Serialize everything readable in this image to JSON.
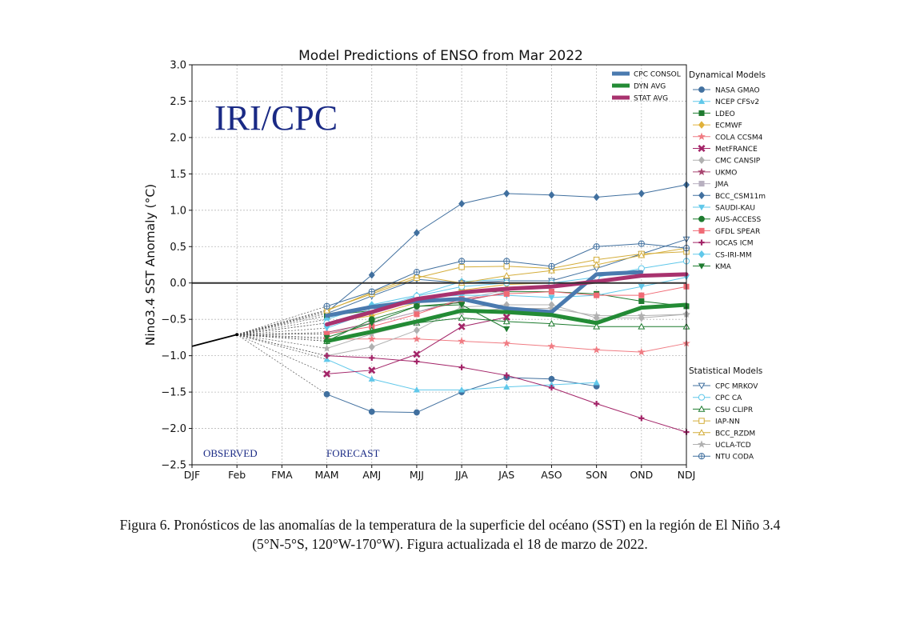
{
  "figure_caption": {
    "line1": "Figura 6. Pronósticos de las anomalías de la temperatura de la superficie del océano (SST) en la región de El Niño 3.4",
    "line2": "(5°N-5°S, 120°W-170°W). Figura actualizada el 18 de marzo de 2022."
  },
  "chart_data": {
    "type": "line",
    "title": "Model Predictions of ENSO from Mar 2022",
    "ylabel": "Nino3.4 SST Anomaly (°C)",
    "xlabel": "",
    "ylim": [
      -2.5,
      3.0
    ],
    "yticks": [
      3.0,
      2.5,
      2.0,
      1.5,
      1.0,
      0.5,
      0.0,
      -0.5,
      -1.0,
      -1.5,
      -2.0,
      -2.5
    ],
    "categories": [
      "DJF",
      "Feb",
      "FMA",
      "MAM",
      "AMJ",
      "MJJ",
      "JJA",
      "JAS",
      "ASO",
      "SON",
      "OND",
      "NDJ"
    ],
    "grid": true,
    "watermark": "IRI/CPC",
    "region_labels": [
      "OBSERVED",
      "FORECAST"
    ],
    "legend_group_titles": [
      "Dynamical Models",
      "Statistical Models"
    ],
    "observed": [
      -0.87,
      -0.71
    ],
    "averages": [
      {
        "name": "CPC CONSOL",
        "color": "#4a7aaf",
        "values": [
          -0.45,
          -0.33,
          -0.25,
          -0.22,
          -0.35,
          -0.4,
          0.12,
          0.15
        ]
      },
      {
        "name": "DYN AVG",
        "color": "#238b35",
        "values": [
          -0.8,
          -0.67,
          -0.53,
          -0.38,
          -0.4,
          -0.44,
          -0.55,
          -0.34,
          -0.3
        ]
      },
      {
        "name": "STAT AVG",
        "color": "#a8326e",
        "values": [
          -0.57,
          -0.4,
          -0.22,
          -0.13,
          -0.08,
          -0.05,
          0.02,
          0.1,
          0.12
        ]
      }
    ],
    "dynamical": [
      {
        "name": "NASA GMAO",
        "color": "#41709f",
        "marker": "circle",
        "values": [
          -1.53,
          -1.77,
          -1.78,
          -1.5,
          -1.3,
          -1.32,
          -1.42
        ]
      },
      {
        "name": "NCEP CFSv2",
        "color": "#60c8ea",
        "marker": "triangle-up",
        "values": [
          -1.05,
          -1.32,
          -1.47,
          -1.47,
          -1.43,
          -1.4,
          -1.37
        ]
      },
      {
        "name": "LDEO",
        "color": "#1e7b2f",
        "marker": "square",
        "values": [
          -0.45,
          -0.38,
          -0.25,
          -0.12,
          -0.12,
          -0.12,
          -0.15,
          -0.25,
          -0.32
        ]
      },
      {
        "name": "ECMWF",
        "color": "#e0b13a",
        "marker": "diamond",
        "values": [
          -0.55,
          -0.45,
          -0.27,
          -0.1,
          -0.02,
          0.0
        ]
      },
      {
        "name": "COLA CCSM4",
        "color": "#f07c83",
        "marker": "star",
        "values": [
          -0.77,
          -0.77,
          -0.77,
          -0.8,
          -0.83,
          -0.87,
          -0.92,
          -0.95,
          -0.83
        ]
      },
      {
        "name": "MetFRANCE",
        "color": "#a32468",
        "marker": "x-filled",
        "values": [
          -1.25,
          -1.2,
          -0.98,
          -0.6,
          -0.47
        ]
      },
      {
        "name": "CMC CANSIP",
        "color": "#b0b0b0",
        "marker": "diamond",
        "values": [
          -1.0,
          -0.88,
          -0.65,
          -0.33,
          -0.3,
          -0.3,
          -0.48,
          -0.48,
          -0.43
        ]
      },
      {
        "name": "UKMO",
        "color": "#a84570",
        "marker": "star",
        "values": [
          -0.68,
          -0.55,
          -0.4,
          -0.25,
          -0.13
        ]
      },
      {
        "name": "JMA",
        "color": "#b8b0c0",
        "marker": "square",
        "values": [
          -0.7,
          -0.55,
          -0.4,
          -0.22,
          -0.1,
          -0.02
        ]
      },
      {
        "name": "BCC_CSM11m",
        "color": "#41709f",
        "marker": "diamond",
        "values": [
          -0.4,
          0.11,
          0.69,
          1.09,
          1.23,
          1.21,
          1.18,
          1.23,
          1.35
        ]
      },
      {
        "name": "SAUDI-KAU",
        "color": "#60c8ea",
        "marker": "triangle-down",
        "values": [
          -0.62,
          -0.4,
          -0.2,
          -0.17,
          -0.17,
          -0.2,
          -0.17,
          -0.05,
          0.08
        ]
      },
      {
        "name": "AUS-ACCESS",
        "color": "#1e7b2f",
        "marker": "circle",
        "values": [
          -0.8,
          -0.5,
          -0.32,
          -0.27
        ]
      },
      {
        "name": "GFDL SPEAR",
        "color": "#f06a75",
        "marker": "square",
        "values": [
          -0.7,
          -0.6,
          -0.43,
          -0.22,
          -0.15,
          -0.12,
          -0.17,
          -0.17,
          -0.05
        ]
      },
      {
        "name": "IOCAS ICM",
        "color": "#a32468",
        "marker": "plus",
        "values": [
          -1.0,
          -1.03,
          -1.08,
          -1.16,
          -1.27,
          -1.44,
          -1.66,
          -1.86,
          -2.05
        ]
      },
      {
        "name": "CS-IRI-MM",
        "color": "#60c8ea",
        "marker": "diamond",
        "values": [
          -0.5,
          -0.3,
          -0.17,
          0.02,
          0.05
        ]
      },
      {
        "name": "KMA",
        "color": "#1e7b2f",
        "marker": "triangle-down",
        "values": [
          -0.75,
          -0.55,
          -0.32,
          -0.3,
          -0.63
        ]
      }
    ],
    "statistical": [
      {
        "name": "CPC MRKOV",
        "color": "#41709f",
        "marker": "triangle-down-open",
        "values": [
          -0.42,
          -0.18,
          0.05,
          0.0,
          0.03,
          0.03,
          0.2,
          0.4,
          0.6
        ]
      },
      {
        "name": "CPC CA",
        "color": "#60c8ea",
        "marker": "circle-open",
        "values": [
          -0.55,
          -0.37,
          -0.18,
          -0.05,
          0.0,
          0.0,
          0.08,
          0.2,
          0.3
        ]
      },
      {
        "name": "CSU CLIPR",
        "color": "#1e7b2f",
        "marker": "triangle-up-open",
        "values": [
          -0.8,
          -0.65,
          -0.55,
          -0.48,
          -0.53,
          -0.56,
          -0.6,
          -0.6,
          -0.6
        ]
      },
      {
        "name": "IAP-NN",
        "color": "#d4ad3a",
        "marker": "square-open",
        "values": [
          -0.37,
          -0.15,
          0.07,
          0.22,
          0.23,
          0.2,
          0.32,
          0.4,
          0.43
        ]
      },
      {
        "name": "BCC_RZDM",
        "color": "#d4ad3a",
        "marker": "triangle-up-open",
        "values": [
          -0.38,
          -0.13,
          0.1,
          0.0,
          0.1,
          0.17,
          0.25,
          0.38,
          0.48
        ]
      },
      {
        "name": "UCLA-TCD",
        "color": "#b0b0b0",
        "marker": "star",
        "values": [
          -0.9,
          -0.7,
          -0.55,
          -0.4,
          -0.35,
          -0.35,
          -0.45,
          -0.45,
          -0.43
        ]
      },
      {
        "name": "NTU CODA",
        "color": "#41709f",
        "marker": "circle-plus-open",
        "values": [
          -0.32,
          -0.12,
          0.15,
          0.3,
          0.3,
          0.23,
          0.5,
          0.54,
          0.48
        ]
      }
    ]
  }
}
